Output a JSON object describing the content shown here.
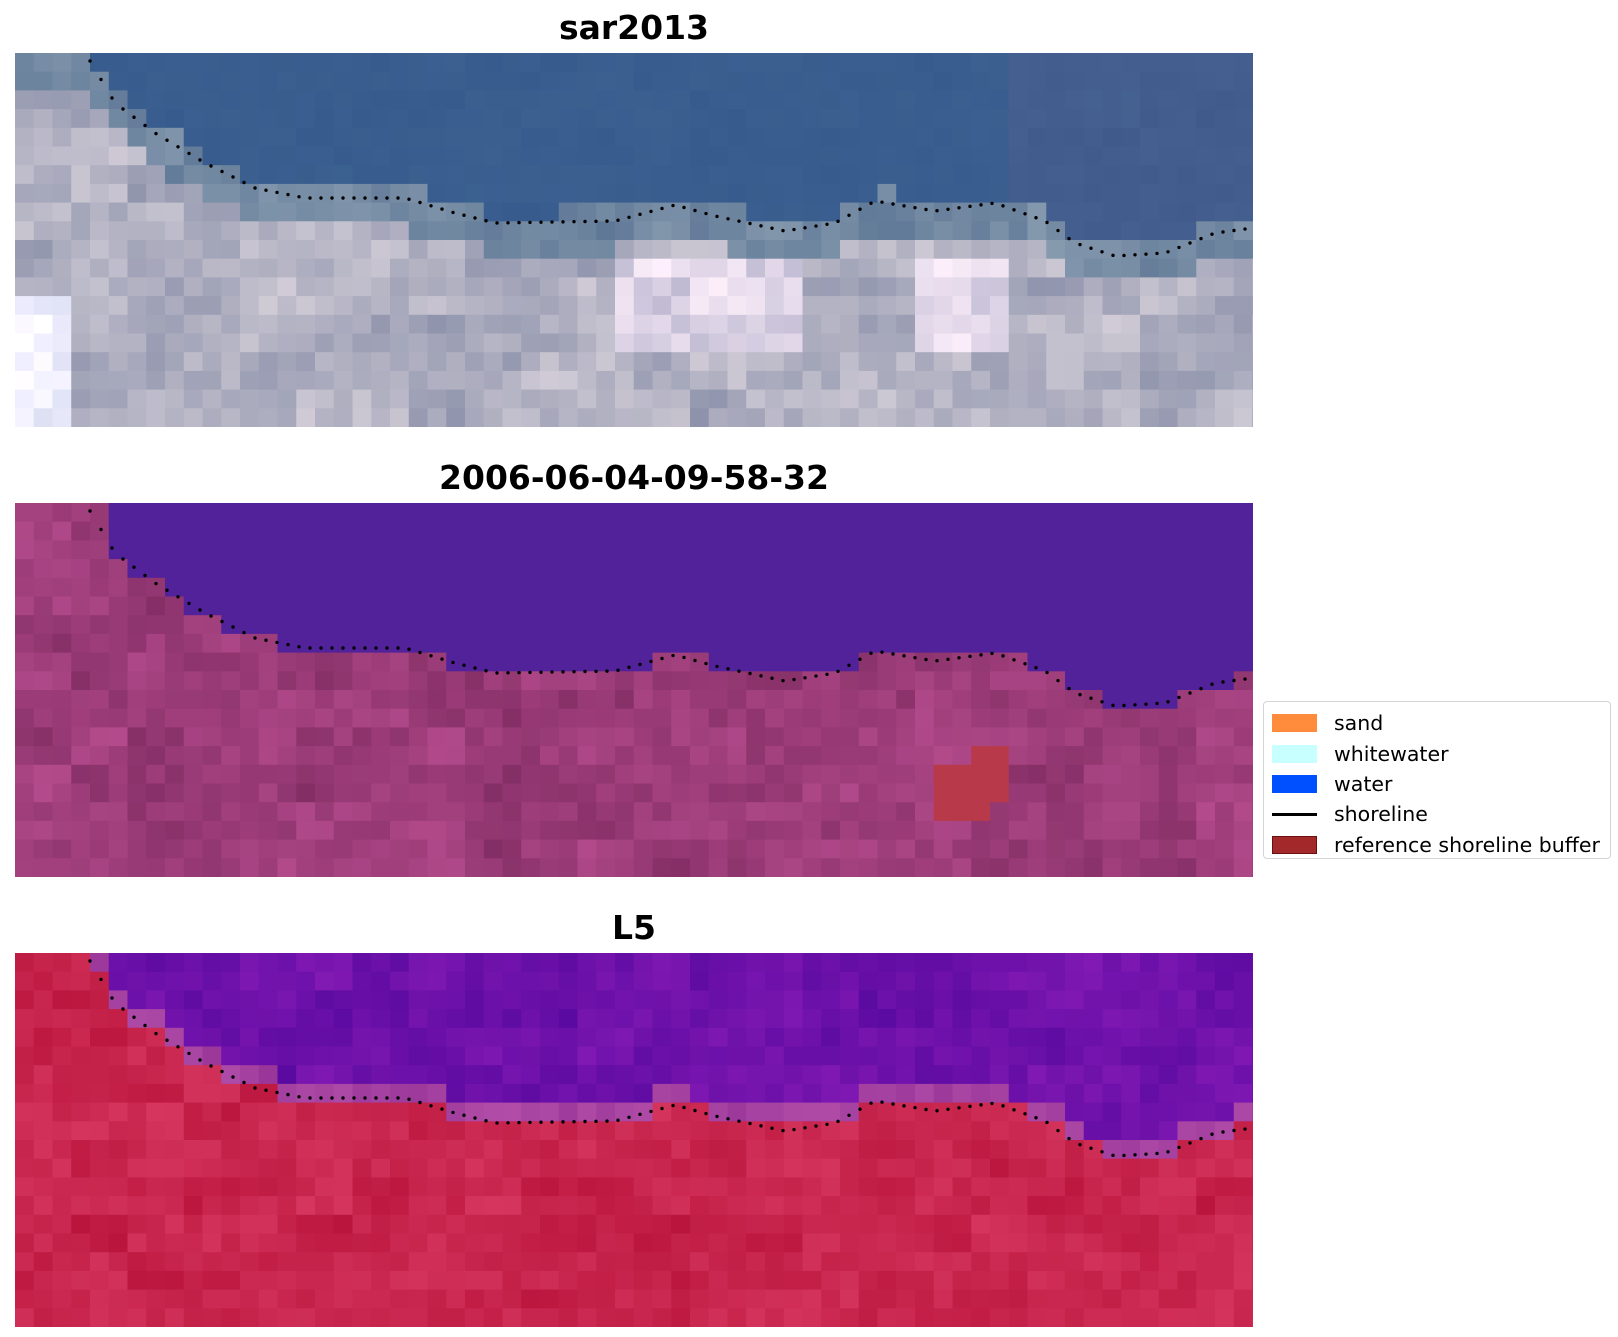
{
  "panels": [
    {
      "title": "sar2013",
      "image_name": "sar2013-rgb-image",
      "palette": "rgb"
    },
    {
      "title": "2006-06-04-09-58-32",
      "image_name": "classified-image",
      "palette": "classified"
    },
    {
      "title": "L5",
      "image_name": "l5-index-image",
      "palette": "index"
    }
  ],
  "legend": {
    "items": [
      {
        "label": "sand",
        "color": "#ff8c3c",
        "kind": "patch"
      },
      {
        "label": "whitewater",
        "color": "#c8ffff",
        "kind": "patch"
      },
      {
        "label": "water",
        "color": "#0050ff",
        "kind": "patch"
      },
      {
        "label": "shoreline",
        "color": "#000000",
        "kind": "line"
      },
      {
        "label": "reference shoreline buffer",
        "color": "#a3282a",
        "kind": "patch"
      }
    ]
  },
  "colors": {
    "water_class": "#52229a",
    "reference_buffer": "#b83a4a",
    "shoreline_points": "#000000"
  }
}
